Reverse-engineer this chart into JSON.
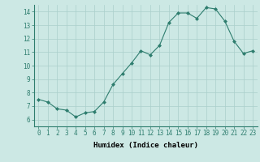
{
  "x": [
    0,
    1,
    2,
    3,
    4,
    5,
    6,
    7,
    8,
    9,
    10,
    11,
    12,
    13,
    14,
    15,
    16,
    17,
    18,
    19,
    20,
    21,
    22,
    23
  ],
  "y": [
    7.5,
    7.3,
    6.8,
    6.7,
    6.2,
    6.5,
    6.6,
    7.3,
    8.6,
    9.4,
    10.2,
    11.1,
    10.8,
    11.5,
    13.2,
    13.9,
    13.9,
    13.5,
    14.3,
    14.2,
    13.3,
    11.8,
    10.9,
    11.1
  ],
  "line_color": "#2e7d6e",
  "marker": "D",
  "marker_size": 2.0,
  "bg_color": "#cce8e4",
  "grid_color": "#aacfcb",
  "xlabel": "Humidex (Indice chaleur)",
  "xlim": [
    -0.5,
    23.5
  ],
  "ylim": [
    5.5,
    14.5
  ],
  "yticks": [
    6,
    7,
    8,
    9,
    10,
    11,
    12,
    13,
    14
  ],
  "xticks": [
    0,
    1,
    2,
    3,
    4,
    5,
    6,
    7,
    8,
    9,
    10,
    11,
    12,
    13,
    14,
    15,
    16,
    17,
    18,
    19,
    20,
    21,
    22,
    23
  ],
  "label_fontsize": 6.5,
  "tick_fontsize": 5.5
}
